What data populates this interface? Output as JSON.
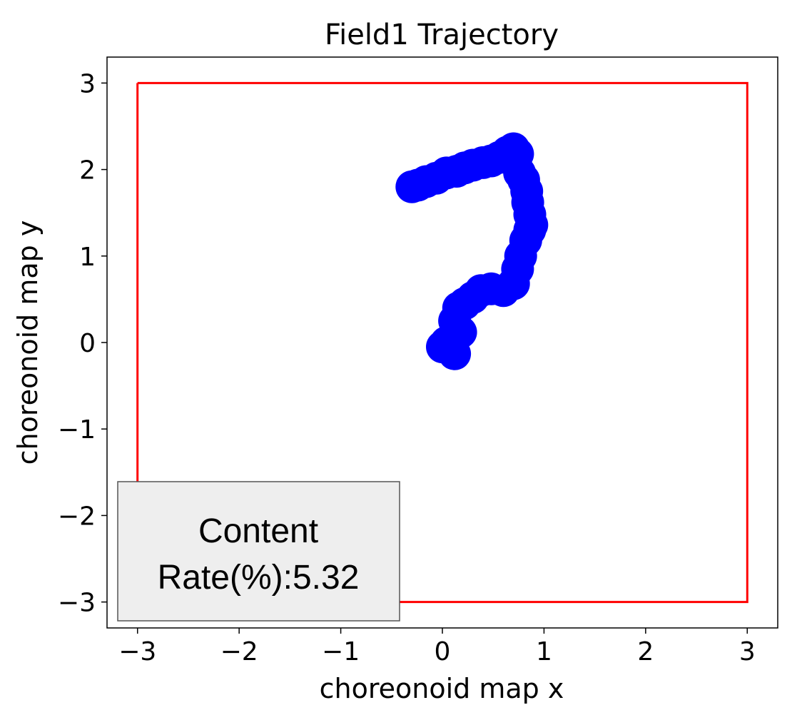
{
  "chart_data": {
    "type": "scatter",
    "title": "Field1 Trajectory",
    "xlabel": "choreonoid map x",
    "ylabel": "choreonoid map y",
    "xlim": [
      -3.3,
      3.3
    ],
    "ylim": [
      -3.3,
      3.3
    ],
    "x_ticks": [
      -3,
      -2,
      -1,
      0,
      1,
      2,
      3
    ],
    "y_ticks": [
      -3,
      -2,
      -1,
      0,
      1,
      2,
      3
    ],
    "x_tick_labels": [
      "−3",
      "−2",
      "−1",
      "0",
      "1",
      "2",
      "3"
    ],
    "y_tick_labels": [
      "−3",
      "−2",
      "−1",
      "0",
      "1",
      "2",
      "3"
    ],
    "grid": false,
    "boundary": {
      "color": "#ff0000",
      "x": [
        -3,
        3,
        3,
        -3,
        -3
      ],
      "y": [
        3,
        3,
        -3,
        -3,
        3
      ]
    },
    "series": [
      {
        "color": "#0000ff",
        "x": [
          0.12,
          0.08,
          0.0,
          0.04,
          0.1,
          0.18,
          0.12,
          0.16,
          0.22,
          0.3,
          0.38,
          0.48,
          0.6,
          0.7,
          0.74,
          0.77,
          0.82,
          0.86,
          0.88,
          0.86,
          0.84,
          0.83,
          0.8,
          0.76,
          0.72,
          0.74,
          0.7,
          0.64,
          0.56,
          0.48,
          0.4,
          0.3,
          0.22,
          0.14,
          0.04,
          -0.06,
          -0.16,
          -0.24,
          -0.3
        ],
        "y": [
          -0.13,
          -0.06,
          -0.05,
          0.0,
          0.05,
          0.12,
          0.25,
          0.4,
          0.45,
          0.52,
          0.6,
          0.62,
          0.6,
          0.68,
          0.85,
          1.0,
          1.18,
          1.3,
          1.36,
          1.48,
          1.62,
          1.75,
          1.88,
          1.96,
          2.08,
          2.18,
          2.24,
          2.2,
          2.14,
          2.1,
          2.08,
          2.05,
          2.02,
          1.98,
          1.96,
          1.9,
          1.86,
          1.82,
          1.8
        ]
      }
    ],
    "annotation": {
      "line1": "Content",
      "line2": "Rate(%):5.32",
      "position": "bottom-left",
      "background": "#eeeeee"
    }
  }
}
